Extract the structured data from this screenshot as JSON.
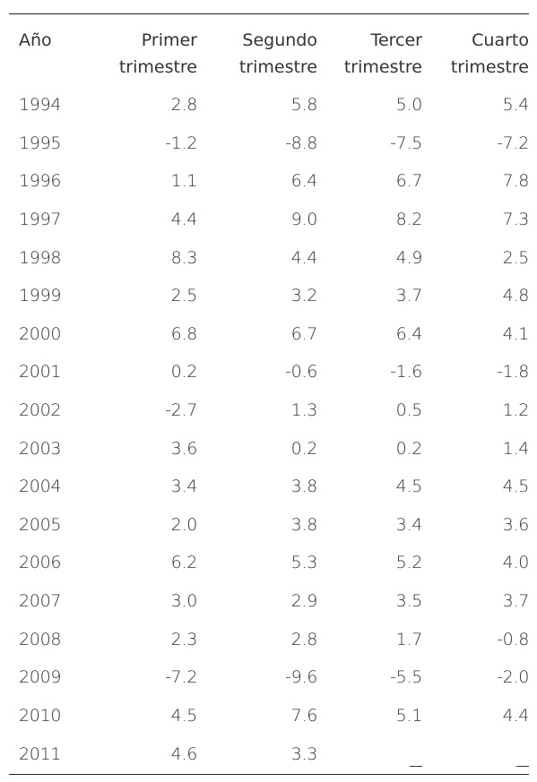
{
  "table": {
    "headers": {
      "year": "Año",
      "q1_line1": "Primer",
      "q1_line2": "trimestre",
      "q2_line1": "Segundo",
      "q2_line2": "trimestre",
      "q3_line1": "Tercer",
      "q3_line2": "trimestre",
      "q4_line1": "Cuarto",
      "q4_line2": "trimestre"
    },
    "rows": [
      {
        "year": "1994",
        "q1": "2.8",
        "q2": "5.8",
        "q3": "5.0",
        "q4": "5.4"
      },
      {
        "year": "1995",
        "q1": "-1.2",
        "q2": "-8.8",
        "q3": "-7.5",
        "q4": "-7.2"
      },
      {
        "year": "1996",
        "q1": "1.1",
        "q2": "6.4",
        "q3": "6.7",
        "q4": "7.8"
      },
      {
        "year": "1997",
        "q1": "4.4",
        "q2": "9.0",
        "q3": "8.2",
        "q4": "7.3"
      },
      {
        "year": "1998",
        "q1": "8.3",
        "q2": "4.4",
        "q3": "4.9",
        "q4": "2.5"
      },
      {
        "year": "1999",
        "q1": "2.5",
        "q2": "3.2",
        "q3": "3.7",
        "q4": "4.8"
      },
      {
        "year": "2000",
        "q1": "6.8",
        "q2": "6.7",
        "q3": "6.4",
        "q4": "4.1"
      },
      {
        "year": "2001",
        "q1": "0.2",
        "q2": "-0.6",
        "q3": "-1.6",
        "q4": "-1.8"
      },
      {
        "year": "2002",
        "q1": "-2.7",
        "q2": "1.3",
        "q3": "0.5",
        "q4": "1.2"
      },
      {
        "year": "2003",
        "q1": "3.6",
        "q2": "0.2",
        "q3": "0.2",
        "q4": "1.4"
      },
      {
        "year": "2004",
        "q1": "3.4",
        "q2": "3.8",
        "q3": "4.5",
        "q4": "4.5"
      },
      {
        "year": "2005",
        "q1": "2.0",
        "q2": "3.8",
        "q3": "3.4",
        "q4": "3.6"
      },
      {
        "year": "2006",
        "q1": "6.2",
        "q2": "5.3",
        "q3": "5.2",
        "q4": "4.0"
      },
      {
        "year": "2007",
        "q1": "3.0",
        "q2": "2.9",
        "q3": "3.5",
        "q4": "3.7"
      },
      {
        "year": "2008",
        "q1": "2.3",
        "q2": "2.8",
        "q3": "1.7",
        "q4": "-0.8"
      },
      {
        "year": "2009",
        "q1": "-7.2",
        "q2": "-9.6",
        "q3": "-5.5",
        "q4": "-2.0"
      },
      {
        "year": "2010",
        "q1": "4.5",
        "q2": "7.6",
        "q3": "5.1",
        "q4": "4.4"
      },
      {
        "year": "2011",
        "q1": "4.6",
        "q2": "3.3",
        "q3": null,
        "q4": null
      }
    ]
  }
}
